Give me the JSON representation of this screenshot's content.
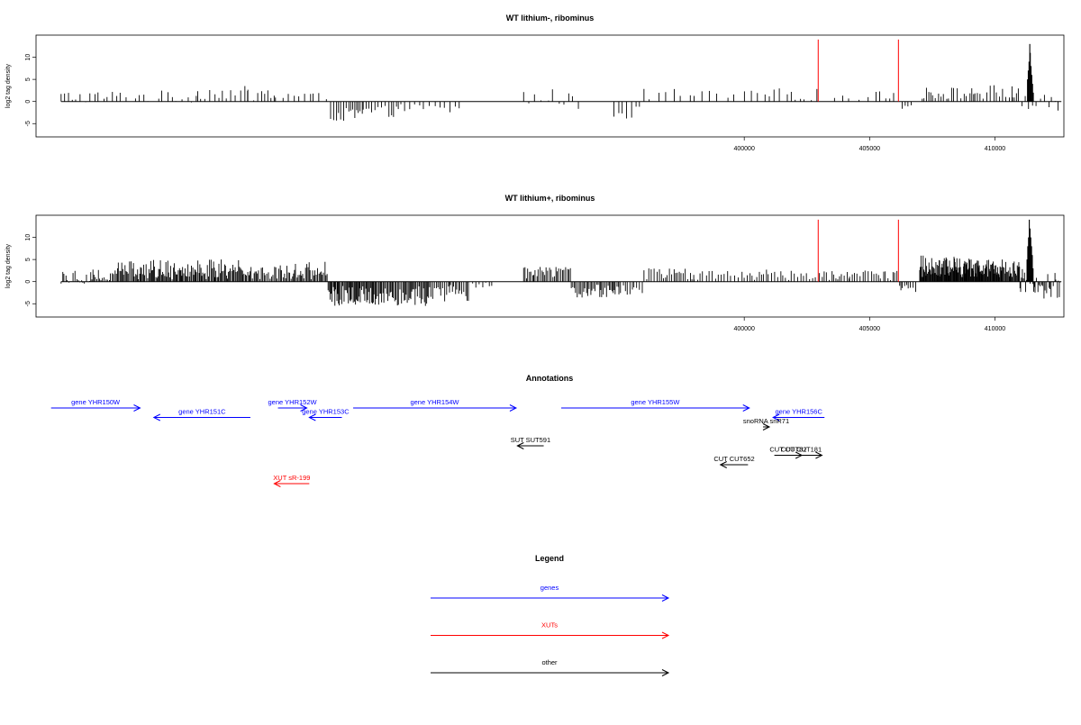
{
  "colors": {
    "genes": "#0000ff",
    "xuts": "#ff0000",
    "other": "#000000",
    "marker": "#ff0000"
  },
  "chart_data": [
    {
      "type": "bar",
      "title": "WT lithium-, ribominus",
      "ylabel": "log2 tag density",
      "xlim": [
        371750,
        412750
      ],
      "ylim": [
        -8,
        15
      ],
      "xticks": [
        400000,
        405000,
        410000
      ],
      "yticks": [
        -5,
        0,
        5,
        10
      ],
      "vertical_markers": [
        {
          "x": 402950,
          "y": 14
        },
        {
          "x": 406150,
          "y": 14
        }
      ],
      "density_segments": [
        {
          "start": 372750,
          "end": 378200,
          "min": -0.3,
          "max": 2.5,
          "step": 180
        },
        {
          "start": 378200,
          "end": 380200,
          "min": 0.5,
          "max": 3.5,
          "step": 160
        },
        {
          "start": 380200,
          "end": 381300,
          "min": 0,
          "max": 3.2,
          "step": 200
        },
        {
          "start": 381300,
          "end": 382800,
          "min": 0,
          "max": 2.5,
          "step": 220
        },
        {
          "start": 382800,
          "end": 383400,
          "min": 0,
          "max": 2.0,
          "step": 300
        },
        {
          "start": 383500,
          "end": 384800,
          "min": -4.5,
          "max": -1.5,
          "step": 90
        },
        {
          "start": 384800,
          "end": 386200,
          "min": -3.5,
          "max": -1.0,
          "step": 110
        },
        {
          "start": 386200,
          "end": 387200,
          "min": -2.5,
          "max": -0.5,
          "step": 160
        },
        {
          "start": 387200,
          "end": 388700,
          "min": -3.0,
          "max": -0.5,
          "step": 200
        },
        {
          "start": 391200,
          "end": 393000,
          "min": -1.0,
          "max": 3.0,
          "step": 240
        },
        {
          "start": 393000,
          "end": 393600,
          "min": -2.5,
          "max": 2.0,
          "step": 200
        },
        {
          "start": 394800,
          "end": 396000,
          "min": -4.0,
          "max": -1.0,
          "step": 220
        },
        {
          "start": 396000,
          "end": 398000,
          "min": 0.2,
          "max": 3.0,
          "step": 300
        },
        {
          "start": 398000,
          "end": 401000,
          "min": 0.2,
          "max": 2.5,
          "step": 380
        },
        {
          "start": 401000,
          "end": 402900,
          "min": 0.3,
          "max": 3.0,
          "step": 230
        },
        {
          "start": 403600,
          "end": 405400,
          "min": 0.2,
          "max": 2.2,
          "step": 300
        },
        {
          "start": 405400,
          "end": 406100,
          "min": 0.5,
          "max": 3.5,
          "step": 180
        },
        {
          "start": 406300,
          "end": 406700,
          "min": -1.8,
          "max": -0.5,
          "step": 120
        },
        {
          "start": 407100,
          "end": 409200,
          "min": 0.5,
          "max": 3.3,
          "step": 110
        },
        {
          "start": 409200,
          "end": 410700,
          "min": 0.3,
          "max": 3.8,
          "step": 110
        },
        {
          "start": 410700,
          "end": 411000,
          "min": 0.5,
          "max": 3.0,
          "step": 90
        },
        {
          "start": 411000,
          "end": 411500,
          "min": -2.0,
          "max": 2.0,
          "step": 100
        },
        {
          "start": 411500,
          "end": 412650,
          "min": -2.5,
          "max": 1.5,
          "step": 130
        }
      ],
      "peak": [
        {
          "x": 411300,
          "y": 5
        },
        {
          "x": 411330,
          "y": 7
        },
        {
          "x": 411360,
          "y": 9
        },
        {
          "x": 411390,
          "y": 13
        },
        {
          "x": 411410,
          "y": 11
        },
        {
          "x": 411440,
          "y": 8
        },
        {
          "x": 411470,
          "y": 6
        },
        {
          "x": 411500,
          "y": 4
        },
        {
          "x": 411530,
          "y": 2
        }
      ]
    },
    {
      "type": "bar",
      "title": "WT lithium+, ribominus",
      "ylabel": "log2 tag density",
      "xlim": [
        371750,
        412750
      ],
      "ylim": [
        -8,
        15
      ],
      "xticks": [
        400000,
        405000,
        410000
      ],
      "yticks": [
        -5,
        0,
        5,
        10
      ],
      "vertical_markers": [
        {
          "x": 402950,
          "y": 14
        },
        {
          "x": 406150,
          "y": 14
        }
      ],
      "density_segments": [
        {
          "start": 372750,
          "end": 375000,
          "min": -0.5,
          "max": 3.0,
          "step": 60
        },
        {
          "start": 375000,
          "end": 377500,
          "min": 0.5,
          "max": 5.0,
          "step": 45
        },
        {
          "start": 377500,
          "end": 380000,
          "min": 0.5,
          "max": 5.0,
          "step": 45
        },
        {
          "start": 380000,
          "end": 381500,
          "min": 0.5,
          "max": 4.0,
          "step": 50
        },
        {
          "start": 381500,
          "end": 383400,
          "min": 0.5,
          "max": 4.5,
          "step": 50
        },
        {
          "start": 383400,
          "end": 385500,
          "min": -5.5,
          "max": -1.0,
          "step": 40
        },
        {
          "start": 385500,
          "end": 387500,
          "min": -5.5,
          "max": -0.8,
          "step": 45
        },
        {
          "start": 387500,
          "end": 389000,
          "min": -4.5,
          "max": -0.5,
          "step": 60
        },
        {
          "start": 389000,
          "end": 390000,
          "min": -1.5,
          "max": -0.2,
          "step": 140
        },
        {
          "start": 391200,
          "end": 393100,
          "min": 0.5,
          "max": 3.5,
          "step": 60
        },
        {
          "start": 393100,
          "end": 395000,
          "min": -4.0,
          "max": -0.5,
          "step": 55
        },
        {
          "start": 395000,
          "end": 396000,
          "min": -3.0,
          "max": -0.5,
          "step": 90
        },
        {
          "start": 396000,
          "end": 398000,
          "min": 0.5,
          "max": 3.0,
          "step": 90
        },
        {
          "start": 398000,
          "end": 400500,
          "min": 0.3,
          "max": 2.5,
          "step": 120
        },
        {
          "start": 400500,
          "end": 402900,
          "min": 0.3,
          "max": 2.8,
          "step": 100
        },
        {
          "start": 403000,
          "end": 404200,
          "min": 0.3,
          "max": 2.5,
          "step": 90
        },
        {
          "start": 404200,
          "end": 406100,
          "min": 0.3,
          "max": 2.8,
          "step": 100
        },
        {
          "start": 406200,
          "end": 406900,
          "min": -2.5,
          "max": -0.5,
          "step": 80
        },
        {
          "start": 407000,
          "end": 408500,
          "min": 1.0,
          "max": 6.0,
          "step": 25
        },
        {
          "start": 408500,
          "end": 410000,
          "min": 1.0,
          "max": 5.5,
          "step": 25
        },
        {
          "start": 410000,
          "end": 411000,
          "min": 1.0,
          "max": 5.0,
          "step": 30
        },
        {
          "start": 411000,
          "end": 411600,
          "min": -2.5,
          "max": 3.0,
          "step": 35
        },
        {
          "start": 411600,
          "end": 412650,
          "min": -4.5,
          "max": 2.0,
          "step": 45
        }
      ],
      "peak": [
        {
          "x": 411280,
          "y": 5
        },
        {
          "x": 411310,
          "y": 8
        },
        {
          "x": 411340,
          "y": 10
        },
        {
          "x": 411370,
          "y": 14
        },
        {
          "x": 411400,
          "y": 12
        },
        {
          "x": 411430,
          "y": 10
        },
        {
          "x": 411460,
          "y": 8
        },
        {
          "x": 411490,
          "y": 6
        },
        {
          "x": 411520,
          "y": 3
        }
      ]
    }
  ],
  "annotations": {
    "title": "Annotations",
    "xlim": [
      371750,
      412750
    ],
    "items": [
      {
        "label": "gene YHR150W",
        "start": 372350,
        "end": 375900,
        "dir": "right",
        "color": "#0000ff",
        "row": 1
      },
      {
        "label": "gene YHR151C",
        "start": 376450,
        "end": 380300,
        "dir": "left",
        "color": "#0000ff",
        "row": 2
      },
      {
        "label": "gene YHR152W",
        "start": 381400,
        "end": 382550,
        "dir": "right",
        "color": "#0000ff",
        "row": 1
      },
      {
        "label": "gene YHR153C",
        "start": 382650,
        "end": 383950,
        "dir": "left",
        "color": "#0000ff",
        "row": 2
      },
      {
        "label": "gene YHR154W",
        "start": 384400,
        "end": 390900,
        "dir": "right",
        "color": "#0000ff",
        "row": 1
      },
      {
        "label": "gene YHR155W",
        "start": 392700,
        "end": 400200,
        "dir": "right",
        "color": "#0000ff",
        "row": 1
      },
      {
        "label": "gene YHR156C",
        "start": 401150,
        "end": 403200,
        "dir": "left",
        "color": "#0000ff",
        "row": 2
      },
      {
        "label": "snoRNA snR71",
        "start": 400750,
        "end": 401000,
        "dir": "right",
        "color": "#000000",
        "row": 3
      },
      {
        "label": "SUT SUT591",
        "start": 390950,
        "end": 392000,
        "dir": "left",
        "color": "#000000",
        "row": 5
      },
      {
        "label": "CUT CUT181",
        "start": 401450,
        "end": 403100,
        "dir": "right",
        "color": "#000000",
        "row": 6
      },
      {
        "label": "CUT CUT82",
        "start": 401200,
        "end": 402300,
        "dir": "right",
        "color": "#000000",
        "row": 6
      },
      {
        "label": "CUT CUT652",
        "start": 399050,
        "end": 400150,
        "dir": "left",
        "color": "#000000",
        "row": 7
      },
      {
        "label": "XUT sR-199",
        "start": 381250,
        "end": 382650,
        "dir": "left",
        "color": "#ff0000",
        "row": 9
      }
    ]
  },
  "legend": {
    "title": "Legend",
    "items": [
      {
        "label": "genes",
        "color": "#0000ff"
      },
      {
        "label": "XUTs",
        "color": "#ff0000"
      },
      {
        "label": "other",
        "color": "#000000"
      }
    ]
  }
}
